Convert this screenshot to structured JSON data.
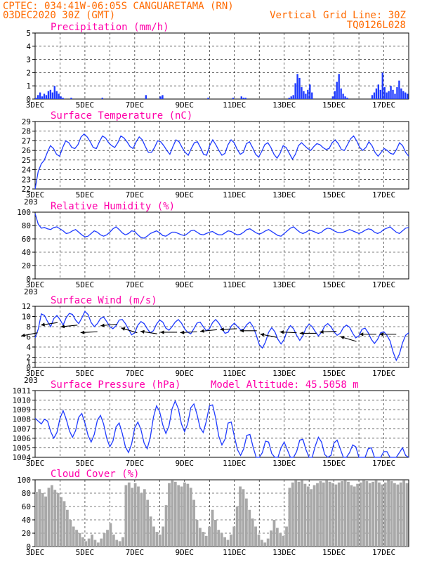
{
  "header": {
    "line1": "CPTEC:   034:41W-06:05S   CANGUARETAMA (RN)",
    "line2_left": "03DEC2020 30Z (GMT)",
    "line2_right": "Vertical Grid Line: 30Z",
    "line3_right": "TQ0126L028"
  },
  "colors": {
    "header": "#ff6a00",
    "title": "#ff00aa",
    "series": "#1f3bff",
    "cloud": "#a8a8a8",
    "arrow": "#000000"
  },
  "chart_data": [
    {
      "id": "precip",
      "type": "bar",
      "title": "Precipitation (mm/h)",
      "ylim": [
        0,
        5
      ],
      "yticks": [
        0,
        1,
        2,
        3,
        4,
        5
      ],
      "xlabels": [
        "3DEC",
        "5DEC",
        "7DEC",
        "9DEC",
        "11DEC",
        "13DEC",
        "15DEC",
        "17DEC"
      ],
      "corner_label": "",
      "grid": "dashed",
      "x_start_day": 3,
      "x_end_day": 18,
      "bar_step_hours": 3,
      "values": [
        0.1,
        0.3,
        0.5,
        0.2,
        0.4,
        0.3,
        0.6,
        0.7,
        0.5,
        1.0,
        0.6,
        0.4,
        0.2,
        0.1,
        0,
        0,
        0,
        0.1,
        0,
        0,
        0,
        0,
        0,
        0,
        0,
        0,
        0,
        0,
        0,
        0,
        0,
        0,
        0.1,
        0,
        0,
        0,
        0,
        0,
        0,
        0,
        0,
        0,
        0,
        0,
        0,
        0,
        0,
        0,
        0,
        0,
        0,
        0,
        0,
        0.3,
        0,
        0,
        0,
        0,
        0,
        0,
        0.2,
        0.3,
        0,
        0,
        0,
        0,
        0,
        0,
        0,
        0,
        0,
        0,
        0,
        0,
        0,
        0,
        0,
        0,
        0,
        0,
        0,
        0,
        0,
        0.1,
        0,
        0,
        0,
        0,
        0,
        0,
        0,
        0,
        0,
        0,
        0,
        0.1,
        0,
        0,
        0,
        0.2,
        0.1,
        0.1,
        0,
        0,
        0,
        0,
        0,
        0,
        0,
        0,
        0,
        0,
        0,
        0,
        0,
        0,
        0,
        0,
        0,
        0,
        0,
        0,
        0.1,
        0.2,
        0.3,
        1.2,
        1.9,
        1.6,
        0.9,
        0.6,
        0.4,
        0.7,
        1.1,
        0.5,
        0,
        0,
        0,
        0,
        0,
        0,
        0,
        0,
        0,
        0.2,
        0.6,
        1.3,
        1.9,
        0.8,
        0.4,
        0.2,
        0.1,
        0,
        0,
        0,
        0,
        0,
        0,
        0,
        0,
        0,
        0,
        0,
        0.3,
        0.5,
        0.8,
        1.1,
        0.7,
        2.0,
        0.9,
        0.5,
        0.6,
        1.0,
        0.7,
        0.4,
        0.9,
        1.4,
        0.8,
        0.6,
        0.5,
        0.4
      ],
      "ylabel": ""
    },
    {
      "id": "temp",
      "type": "line",
      "title": "Surface Temperature (nC)",
      "ylim": [
        22,
        29
      ],
      "yticks": [
        22,
        23,
        24,
        25,
        26,
        27,
        28,
        29
      ],
      "xlabels": [
        "3DEC",
        "5DEC",
        "7DEC",
        "9DEC",
        "11DEC",
        "13DEC",
        "15DEC",
        "17DEC"
      ],
      "corner_label": "203",
      "grid": "dashed",
      "x_start_day": 3,
      "x_end_day": 18,
      "step_hours": 3,
      "values": [
        22.0,
        23.8,
        24.6,
        25.0,
        25.8,
        26.5,
        26.2,
        25.6,
        25.4,
        26.3,
        27.0,
        26.8,
        26.3,
        26.2,
        26.6,
        27.4,
        27.7,
        27.4,
        26.9,
        26.3,
        26.2,
        26.9,
        27.5,
        27.3,
        26.8,
        26.5,
        26.3,
        26.8,
        27.5,
        27.3,
        26.9,
        26.4,
        26.2,
        26.9,
        27.4,
        27.1,
        26.4,
        25.8,
        25.8,
        26.3,
        27.0,
        26.9,
        26.5,
        26.0,
        25.6,
        26.4,
        27.1,
        26.9,
        26.3,
        25.8,
        25.5,
        26.2,
        26.8,
        26.9,
        26.3,
        25.6,
        25.5,
        26.5,
        27.1,
        26.6,
        26.0,
        25.5,
        25.7,
        26.6,
        27.1,
        26.8,
        26.1,
        25.6,
        25.8,
        26.7,
        26.9,
        26.3,
        25.6,
        25.3,
        25.9,
        26.6,
        26.8,
        26.3,
        25.6,
        25.2,
        25.7,
        26.5,
        26.3,
        25.7,
        25.1,
        25.6,
        26.5,
        26.8,
        26.5,
        26.2,
        26.0,
        26.4,
        26.7,
        26.6,
        26.3,
        26.1,
        26.2,
        26.8,
        27.1,
        26.7,
        26.1,
        26.0,
        26.6,
        27.2,
        27.5,
        27.0,
        26.3,
        26.0,
        26.3,
        26.9,
        26.5,
        25.8,
        25.4,
        25.8,
        26.2,
        26.0,
        25.7,
        25.6,
        26.1,
        26.8,
        26.5,
        25.8,
        25.4
      ]
    },
    {
      "id": "rh",
      "type": "line",
      "title": "Relative Humidity (%)",
      "ylim": [
        0,
        100
      ],
      "yticks": [
        0,
        20,
        40,
        60,
        80,
        100
      ],
      "xlabels": [
        "3DEC",
        "5DEC",
        "7DEC",
        "9DEC",
        "11DEC",
        "13DEC",
        "15DEC",
        "17DEC"
      ],
      "corner_label": "203",
      "grid": "dashed",
      "x_start_day": 3,
      "x_end_day": 18,
      "step_hours": 3,
      "values": [
        98,
        82,
        76,
        77,
        75,
        74,
        77,
        78,
        75,
        72,
        68,
        69,
        72,
        74,
        70,
        66,
        63,
        64,
        68,
        72,
        70,
        66,
        64,
        66,
        70,
        75,
        78,
        74,
        69,
        66,
        68,
        72,
        71,
        66,
        62,
        61,
        64,
        68,
        70,
        72,
        69,
        65,
        64,
        67,
        70,
        70,
        68,
        66,
        65,
        68,
        72,
        73,
        70,
        67,
        66,
        68,
        70,
        71,
        68,
        66,
        66,
        69,
        72,
        71,
        68,
        66,
        67,
        70,
        74,
        75,
        72,
        69,
        67,
        69,
        72,
        74,
        71,
        68,
        65,
        64,
        68,
        72,
        76,
        78,
        74,
        70,
        68,
        70,
        73,
        72,
        70,
        68,
        70,
        74,
        76,
        75,
        72,
        70,
        69,
        70,
        72,
        74,
        72,
        70,
        68,
        70,
        73,
        75,
        74,
        70,
        68,
        70,
        74,
        76,
        78,
        74,
        70,
        68,
        72,
        76,
        77
      ]
    },
    {
      "id": "wind",
      "type": "line",
      "title": "Surface Wind (m/s)",
      "ylim": [
        0,
        12
      ],
      "yticks": [
        0,
        1,
        2,
        4,
        6,
        8,
        10,
        12
      ],
      "xlabels": [
        "3DEC",
        "5DEC",
        "7DEC",
        "9DEC",
        "11DEC",
        "13DEC",
        "15DEC",
        "17DEC"
      ],
      "corner_label": "203",
      "grid": "dashed",
      "x_start_day": 3,
      "x_end_day": 18,
      "step_hours": 3,
      "values": [
        5.8,
        7.5,
        10.5,
        10.2,
        9.0,
        8.0,
        9.6,
        10.2,
        9.4,
        8.3,
        9.8,
        10.6,
        10.4,
        9.3,
        8.6,
        9.7,
        11.0,
        10.4,
        8.8,
        8.0,
        8.6,
        9.6,
        9.9,
        9.0,
        8.0,
        7.6,
        8.2,
        9.3,
        9.4,
        8.6,
        7.5,
        6.4,
        6.8,
        8.3,
        9.0,
        8.6,
        7.6,
        6.8,
        7.2,
        8.5,
        9.3,
        8.9,
        7.7,
        7.3,
        8.0,
        8.9,
        9.4,
        8.7,
        7.6,
        6.9,
        6.6,
        7.6,
        8.7,
        8.9,
        8.0,
        7.2,
        7.6,
        8.8,
        9.4,
        8.7,
        7.6,
        6.7,
        6.9,
        8.1,
        8.7,
        8.0,
        7.4,
        7.5,
        8.4,
        8.9,
        8.0,
        6.4,
        4.5,
        3.8,
        5.0,
        6.9,
        7.8,
        7.0,
        5.5,
        4.6,
        5.5,
        7.3,
        8.2,
        7.6,
        6.3,
        5.3,
        6.2,
        7.7,
        8.5,
        8.0,
        7.0,
        6.2,
        6.9,
        8.1,
        8.6,
        8.0,
        7.0,
        6.3,
        6.7,
        7.8,
        8.3,
        7.9,
        6.7,
        5.8,
        6.2,
        7.5,
        7.7,
        6.8,
        5.5,
        4.7,
        5.5,
        6.8,
        7.0,
        6.3,
        5.2,
        3.0,
        1.4,
        2.6,
        4.8,
        6.3,
        6.8
      ],
      "arrows": [
        {
          "day": 3.1,
          "speed": 6.8,
          "dx": -1,
          "dy": 0.2
        },
        {
          "day": 3.9,
          "speed": 8.8,
          "dx": -1,
          "dy": 0.15
        },
        {
          "day": 4.7,
          "speed": 8.3,
          "dx": -1,
          "dy": 0.1
        },
        {
          "day": 5.5,
          "speed": 7.0,
          "dx": -1,
          "dy": 0.05
        },
        {
          "day": 6.3,
          "speed": 8.5,
          "dx": -1,
          "dy": 0.1
        },
        {
          "day": 7.1,
          "speed": 6.8,
          "dx": -1,
          "dy": -0.3
        },
        {
          "day": 7.9,
          "speed": 6.6,
          "dx": -1,
          "dy": -0.15
        },
        {
          "day": 8.7,
          "speed": 6.9,
          "dx": -1,
          "dy": 0.0
        },
        {
          "day": 9.5,
          "speed": 7.0,
          "dx": -1,
          "dy": 0.05
        },
        {
          "day": 10.3,
          "speed": 7.4,
          "dx": -1,
          "dy": 0.1
        },
        {
          "day": 11.1,
          "speed": 7.6,
          "dx": -1,
          "dy": 0.05
        },
        {
          "day": 11.9,
          "speed": 7.2,
          "dx": -1,
          "dy": 0.0
        },
        {
          "day": 12.7,
          "speed": 5.9,
          "dx": -1,
          "dy": -0.2
        },
        {
          "day": 13.5,
          "speed": 6.8,
          "dx": -1,
          "dy": -0.05
        },
        {
          "day": 14.3,
          "speed": 6.7,
          "dx": -1,
          "dy": 0.0
        },
        {
          "day": 15.1,
          "speed": 7.1,
          "dx": -1,
          "dy": 0.05
        },
        {
          "day": 15.9,
          "speed": 5.1,
          "dx": -1,
          "dy": -0.3
        },
        {
          "day": 16.7,
          "speed": 6.5,
          "dx": -1,
          "dy": 0.0
        },
        {
          "day": 17.5,
          "speed": 6.5,
          "dx": -1,
          "dy": 0.0
        }
      ]
    },
    {
      "id": "pressure",
      "type": "line",
      "title": "Surface Pressure (hPa)",
      "extra_label": "Model Altitude: 45.5058  m",
      "ylim": [
        1004,
        1011
      ],
      "yticks": [
        1004,
        1005,
        1006,
        1007,
        1008,
        1009,
        1010,
        1011
      ],
      "xlabels": [
        "3DEC",
        "5DEC",
        "7DEC",
        "9DEC",
        "11DEC",
        "13DEC",
        "15DEC",
        "17DEC"
      ],
      "corner_label": "",
      "grid": "dashed",
      "x_start_day": 3,
      "x_end_day": 18,
      "step_hours": 3,
      "values": [
        1008.1,
        1007.8,
        1007.5,
        1008.0,
        1007.8,
        1006.7,
        1006.0,
        1006.6,
        1008.1,
        1008.9,
        1008.0,
        1006.8,
        1006.1,
        1006.8,
        1008.2,
        1008.6,
        1007.6,
        1006.3,
        1005.6,
        1006.4,
        1007.9,
        1008.4,
        1007.5,
        1006.0,
        1005.1,
        1005.7,
        1007.2,
        1007.6,
        1006.5,
        1005.1,
        1004.5,
        1005.4,
        1007.1,
        1007.7,
        1006.9,
        1005.5,
        1004.9,
        1006.1,
        1008.2,
        1009.4,
        1008.8,
        1007.4,
        1006.5,
        1007.3,
        1009.1,
        1009.9,
        1009.1,
        1007.5,
        1006.7,
        1007.5,
        1009.2,
        1009.6,
        1008.5,
        1007.1,
        1006.6,
        1007.8,
        1009.4,
        1009.5,
        1008.1,
        1006.2,
        1005.3,
        1005.9,
        1007.6,
        1007.7,
        1006.2,
        1004.8,
        1004.2,
        1004.9,
        1006.3,
        1006.4,
        1005.1,
        1003.9,
        1003.5,
        1004.5,
        1005.7,
        1005.6,
        1004.4,
        1003.5,
        1003.8,
        1005.0,
        1005.6,
        1004.8,
        1003.8,
        1003.6,
        1004.6,
        1005.8,
        1005.9,
        1004.8,
        1003.7,
        1003.8,
        1005.2,
        1006.1,
        1005.6,
        1004.3,
        1003.6,
        1004.2,
        1005.5,
        1005.8,
        1004.9,
        1003.8,
        1003.6,
        1004.5,
        1005.3,
        1005.1,
        1004.0,
        1003.5,
        1004.0,
        1004.9,
        1005.0,
        1004.0,
        1003.3,
        1003.8,
        1004.6,
        1004.6,
        1003.7,
        1003.1,
        1003.6,
        1004.5,
        1005.0,
        1004.2,
        1003.4
      ]
    },
    {
      "id": "cloud",
      "type": "bar",
      "title": "Cloud Cover (%)",
      "ylim": [
        0,
        100
      ],
      "yticks": [
        0,
        20,
        40,
        60,
        80,
        100
      ],
      "xlabels": [
        "3DEC",
        "5DEC",
        "7DEC",
        "9DEC",
        "11DEC",
        "13DEC",
        "15DEC",
        "17DEC"
      ],
      "corner_label": "",
      "grid": "dashed",
      "x_start_day": 3,
      "x_end_day": 18,
      "bar_step_hours": 3,
      "values": [
        82,
        86,
        80,
        75,
        88,
        92,
        85,
        80,
        74,
        68,
        55,
        40,
        30,
        25,
        20,
        14,
        8,
        12,
        18,
        10,
        6,
        12,
        20,
        25,
        35,
        18,
        10,
        8,
        14,
        92,
        96,
        88,
        95,
        90,
        80,
        86,
        70,
        45,
        30,
        22,
        18,
        30,
        62,
        95,
        99,
        97,
        92,
        90,
        96,
        94,
        88,
        70,
        40,
        28,
        22,
        16,
        30,
        55,
        40,
        25,
        20,
        14,
        10,
        18,
        30,
        60,
        90,
        86,
        72,
        55,
        42,
        30,
        18,
        10,
        6,
        12,
        24,
        40,
        28,
        20,
        16,
        30,
        88,
        96,
        99,
        97,
        99,
        94,
        90,
        86,
        92,
        95,
        98,
        96,
        99,
        97,
        95,
        93,
        96,
        98,
        99,
        97,
        92,
        90,
        94,
        96,
        99,
        98,
        95,
        97,
        99,
        96,
        93,
        96,
        99,
        98,
        95,
        93,
        96,
        99,
        95
      ]
    }
  ]
}
